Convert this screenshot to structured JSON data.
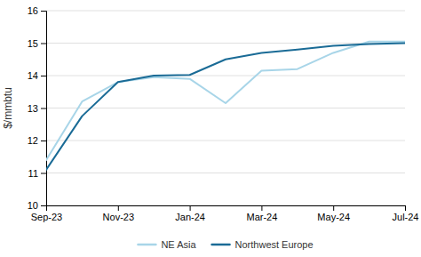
{
  "chart_data": {
    "type": "line",
    "categories": [
      "Sep-23",
      null,
      "Nov-23",
      null,
      "Jan-24",
      null,
      "Mar-24",
      null,
      "May-24",
      null,
      "Jul-24"
    ],
    "series": [
      {
        "name": "NE Asia",
        "color": "#a8d5e8",
        "values": [
          11.4,
          13.2,
          13.8,
          13.95,
          13.9,
          13.15,
          14.15,
          14.2,
          14.7,
          15.05,
          15.05
        ]
      },
      {
        "name": "Northwest Europe",
        "color": "#1a6b96",
        "values": [
          11.1,
          12.75,
          13.8,
          14.0,
          14.02,
          14.5,
          14.7,
          14.8,
          14.92,
          14.97,
          15.0
        ]
      }
    ],
    "ylabel": "$/mmbtu",
    "ylim": [
      10,
      16
    ],
    "yticks": [
      10,
      11,
      12,
      13,
      14,
      15,
      16
    ],
    "grid": true,
    "legend": "bottom"
  }
}
